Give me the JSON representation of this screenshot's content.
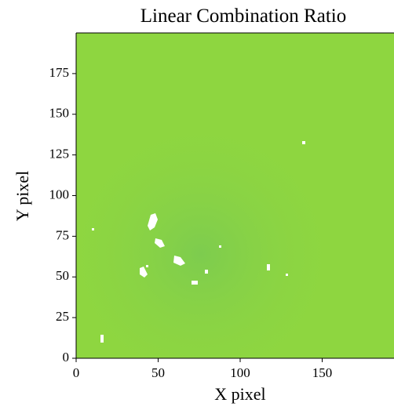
{
  "chart_data": {
    "type": "image",
    "title": "Linear Combination Ratio",
    "x_label": "X pixel",
    "y_label": "Y pixel",
    "xlim": [
      0,
      200
    ],
    "ylim": [
      0,
      200
    ],
    "xticks": [
      0,
      50,
      100,
      150
    ],
    "yticks": [
      0,
      25,
      50,
      75,
      100,
      125,
      150,
      175
    ],
    "color": "#8ed640"
  }
}
